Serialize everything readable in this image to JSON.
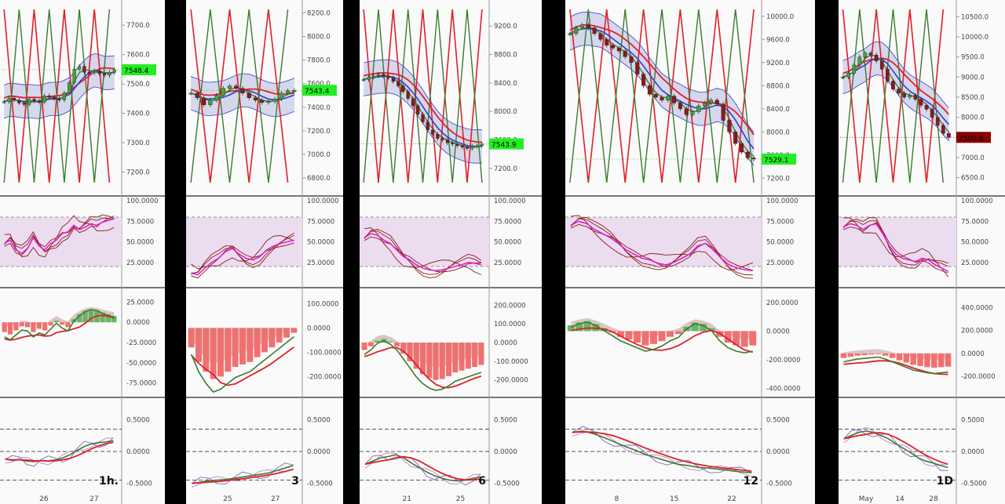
{
  "colors": {
    "candle_up": "#3aa83a",
    "candle_down": "#8b1a1a",
    "ma_red": "#e0202a",
    "ma_blue": "#3040c8",
    "ma_green": "#3c7a30",
    "band_fill": "#c8cbe8",
    "stoch_magenta": "#e020d0",
    "stoch_zone": "#ecdcf0",
    "hist_up": "#64b664",
    "hist_down": "#f07070",
    "trend_blue": "#3a4ad0",
    "price_tag": "#22ee22",
    "price_tag_down": "#8b0000"
  },
  "chart_data": [
    {
      "type": "candlestick",
      "timeframe": "1h.",
      "price_label": "7548.4",
      "price_tag_color": "green",
      "price_ticks": [
        "7700.0",
        "7600.0",
        "7500.0",
        "7400.0",
        "7300.0",
        "7200.0"
      ],
      "price_range": [
        7140,
        7770
      ],
      "x_ticks": [
        "26",
        "27"
      ],
      "close": [
        7440,
        7452,
        7445,
        7435,
        7430,
        7448,
        7442,
        7438,
        7460,
        7455,
        7450,
        7445,
        7470,
        7505,
        7550,
        7560,
        7540,
        7538,
        7545,
        7535,
        7530,
        7540,
        7548
      ],
      "stoch_ticks": [
        "100.0000",
        "75.0000",
        "50.0000",
        "25.0000"
      ],
      "stoch_k": [
        48,
        52,
        40,
        36,
        42,
        55,
        45,
        40,
        48,
        52,
        60,
        62,
        70,
        65,
        68,
        72,
        70,
        74,
        76,
        78
      ],
      "macd_ticks": [
        "25.0000",
        "0.0000",
        "-25.0000",
        "-50.0000",
        "-75.0000"
      ],
      "macd_range": [
        -85,
        35
      ],
      "macd_hist": [
        -12,
        -15,
        -10,
        -5,
        -6,
        -12,
        -8,
        -10,
        -4,
        2,
        -3,
        -6,
        4,
        10,
        14,
        16,
        15,
        12,
        10,
        8
      ],
      "osc_ticks": [
        "0.5000",
        "0.0000",
        "-0.5000"
      ],
      "osc_line": [
        -0.12,
        -0.14,
        -0.13,
        -0.15,
        -0.16,
        -0.14,
        -0.15,
        -0.13,
        -0.1,
        -0.05,
        0.02,
        0.08,
        0.12,
        0.14,
        0.15,
        0.17
      ]
    },
    {
      "type": "candlestick",
      "timeframe": "3",
      "price_label": "7543.4",
      "price_tag_color": "green",
      "price_ticks": [
        "8200.0",
        "8000.0",
        "7800.0",
        "7600.0",
        "7400.0",
        "7200.0",
        "7000.0",
        "6800.0"
      ],
      "price_range": [
        6700,
        8270
      ],
      "x_ticks": [
        "25",
        "27"
      ],
      "close": [
        7520,
        7480,
        7420,
        7460,
        7500,
        7560,
        7580,
        7560,
        7520,
        7480,
        7460,
        7440,
        7450,
        7470,
        7520,
        7540,
        7543
      ],
      "stoch_ticks": [
        "100.0000",
        "75.0000",
        "50.0000",
        "25.0000"
      ],
      "stoch_k": [
        12,
        10,
        18,
        25,
        30,
        38,
        42,
        35,
        30,
        28,
        32,
        40,
        45,
        48,
        50,
        52
      ],
      "macd_ticks": [
        "100.0000",
        "0.0000",
        "-100.0000",
        "-200.0000"
      ],
      "macd_range": [
        -260,
        140
      ],
      "macd_hist": [
        -80,
        -140,
        -180,
        -210,
        -200,
        -180,
        -160,
        -150,
        -140,
        -120,
        -100,
        -80,
        -60,
        -40,
        -20
      ],
      "osc_ticks": [
        "0.5000",
        "0.0000",
        "-0.5000"
      ],
      "osc_line": [
        -0.5,
        -0.48,
        -0.46,
        -0.45,
        -0.44,
        -0.42,
        -0.4,
        -0.38,
        -0.36,
        -0.34,
        -0.3,
        -0.26,
        -0.22
      ]
    },
    {
      "type": "candlestick",
      "timeframe": "6",
      "price_label": "7543.9",
      "price_tag_color": "green",
      "price_ticks": [
        "9200.0",
        "8800.0",
        "8400.0",
        "8000.0",
        "7600.0",
        "7200.0"
      ],
      "price_range": [
        6900,
        9500
      ],
      "x_ticks": [
        "21",
        "25"
      ],
      "close": [
        8450,
        8480,
        8500,
        8520,
        8500,
        8470,
        8420,
        8360,
        8280,
        8180,
        8080,
        7960,
        7850,
        7740,
        7680,
        7620,
        7600,
        7560,
        7540,
        7520,
        7500,
        7480,
        7510,
        7520,
        7543
      ],
      "stoch_ticks": [
        "100.0000",
        "75.0000",
        "50.0000",
        "25.0000"
      ],
      "stoch_k": [
        55,
        60,
        58,
        52,
        48,
        40,
        32,
        28,
        22,
        18,
        16,
        15,
        16,
        18,
        20,
        22,
        25,
        24,
        22
      ],
      "macd_ticks": [
        "200.0000",
        "100.0000",
        "0.0000",
        "-100.0000",
        "-200.0000"
      ],
      "macd_range": [
        -260,
        260
      ],
      "macd_hist": [
        -40,
        -20,
        10,
        20,
        5,
        -20,
        -60,
        -100,
        -140,
        -170,
        -190,
        -200,
        -195,
        -180,
        -160,
        -150,
        -140,
        -130,
        -120
      ],
      "osc_ticks": [
        "0.5000",
        "0.0000",
        "-0.5000"
      ],
      "osc_line": [
        -0.2,
        -0.15,
        -0.1,
        -0.08,
        -0.05,
        -0.1,
        -0.18,
        -0.25,
        -0.32,
        -0.38,
        -0.42,
        -0.45,
        -0.46,
        -0.45,
        -0.42,
        -0.4
      ]
    },
    {
      "type": "candlestick",
      "timeframe": "12",
      "price_label": "7529.1",
      "price_tag_color": "green",
      "price_ticks": [
        "10000.0",
        "9600.0",
        "9200.0",
        "8800.0",
        "8400.0",
        "8000.0",
        "7600.0",
        "7200.0"
      ],
      "price_range": [
        7000,
        10200
      ],
      "x_ticks": [
        "8",
        "15",
        "22"
      ],
      "close": [
        9700,
        9800,
        9850,
        9800,
        9700,
        9600,
        9500,
        9450,
        9400,
        9300,
        9200,
        9000,
        8800,
        8650,
        8600,
        8550,
        8620,
        8500,
        8400,
        8300,
        8350,
        8450,
        8500,
        8550,
        8480,
        8200,
        8000,
        7800,
        7650,
        7550,
        7529
      ],
      "stoch_ticks": [
        "100.0000",
        "75.0000",
        "50.0000",
        "25.0000"
      ],
      "stoch_k": [
        70,
        75,
        72,
        65,
        60,
        55,
        48,
        40,
        35,
        30,
        28,
        24,
        22,
        25,
        30,
        35,
        45,
        48,
        40,
        30,
        22,
        18,
        16,
        15
      ],
      "macd_ticks": [
        "200.0000",
        "0.0000",
        "-200.0000",
        "-400.0000"
      ],
      "macd_range": [
        -420,
        260
      ],
      "macd_hist": [
        40,
        60,
        70,
        50,
        20,
        -10,
        -40,
        -60,
        -80,
        -100,
        -90,
        -70,
        -40,
        -20,
        30,
        60,
        50,
        20,
        -40,
        -80,
        -100,
        -110,
        -100
      ],
      "osc_ticks": [
        "0.5000",
        "0.0000",
        "-0.5000"
      ],
      "osc_line": [
        0.3,
        0.32,
        0.28,
        0.22,
        0.15,
        0.08,
        0.02,
        -0.05,
        -0.1,
        -0.15,
        -0.2,
        -0.22,
        -0.25,
        -0.26,
        -0.28,
        -0.3,
        -0.32,
        -0.33
      ]
    },
    {
      "type": "candlestick",
      "timeframe": "1D",
      "price_label": "7500.9",
      "price_tag_color": "red",
      "price_ticks": [
        "10500.0",
        "10000.0",
        "9500.0",
        "9000.0",
        "8500.0",
        "8000.0",
        "7500.0",
        "7000.0",
        "6500.0"
      ],
      "price_range": [
        6200,
        10800
      ],
      "x_ticks": [
        "May",
        "14",
        "28"
      ],
      "close": [
        9000,
        9100,
        9300,
        9500,
        9600,
        9550,
        9400,
        9200,
        8900,
        8700,
        8600,
        8500,
        8550,
        8450,
        8300,
        8200,
        8000,
        7800,
        7600,
        7500
      ],
      "stoch_ticks": [
        "100.0000",
        "75.0000",
        "50.0000",
        "25.0000"
      ],
      "stoch_k": [
        68,
        72,
        70,
        65,
        70,
        72,
        60,
        45,
        35,
        30,
        28,
        26,
        30,
        28,
        22,
        18,
        14
      ],
      "macd_ticks": [
        "400.0000",
        "200.0000",
        "0.0000",
        "-200.0000"
      ],
      "macd_range": [
        -330,
        520
      ],
      "macd_hist": [
        -40,
        -30,
        -20,
        -15,
        -10,
        -5,
        -20,
        -40,
        -60,
        -80,
        -100,
        -110,
        -120,
        -125,
        -120,
        -115
      ],
      "osc_ticks": [
        "0.5000",
        "0.0000",
        "-0.5000"
      ],
      "osc_line": [
        0.2,
        0.25,
        0.3,
        0.32,
        0.3,
        0.25,
        0.2,
        0.12,
        0.05,
        -0.02,
        -0.1,
        -0.15,
        -0.18,
        -0.22,
        -0.25
      ]
    }
  ]
}
